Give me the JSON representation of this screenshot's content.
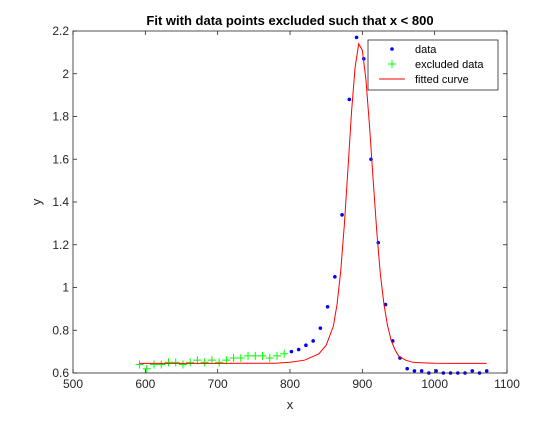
{
  "chart_data": {
    "type": "scatter",
    "title": "Fit with data points excluded such that x < 800",
    "xlabel": "x",
    "ylabel": "y",
    "xlim": [
      500,
      1100
    ],
    "ylim": [
      0.6,
      2.2
    ],
    "xticks": [
      500,
      600,
      700,
      800,
      900,
      1000,
      1100
    ],
    "xtick_labels": [
      "500",
      "600",
      "700",
      "800",
      "900",
      "1000",
      "1100"
    ],
    "yticks": [
      0.6,
      0.8,
      1.0,
      1.2,
      1.4,
      1.6,
      1.8,
      2.0,
      2.2
    ],
    "ytick_labels": [
      "0.6",
      "0.8",
      "1",
      "1.2",
      "1.4",
      "1.6",
      "1.8",
      "2",
      "2.2"
    ],
    "grid": false,
    "legend_position": "top-right",
    "legend": [
      {
        "label": "data",
        "marker": "dot",
        "color": "#0000ff"
      },
      {
        "label": "excluded data",
        "marker": "plus",
        "color": "#00ff00"
      },
      {
        "label": "fitted curve",
        "marker": "line",
        "color": "#ff0000"
      }
    ],
    "series": [
      {
        "name": "data",
        "kind": "points",
        "color": "#0000ff",
        "x": [
          802,
          812,
          822,
          832,
          842,
          852,
          862,
          872,
          882,
          892,
          902,
          912,
          922,
          932,
          942,
          952,
          962,
          972,
          982,
          992,
          1002,
          1012,
          1022,
          1032,
          1042,
          1052,
          1062,
          1072
        ],
        "y": [
          0.7,
          0.71,
          0.73,
          0.75,
          0.81,
          0.91,
          1.05,
          1.34,
          1.88,
          2.17,
          2.07,
          1.6,
          1.21,
          0.92,
          0.75,
          0.67,
          0.62,
          0.61,
          0.61,
          0.6,
          0.61,
          0.6,
          0.6,
          0.6,
          0.6,
          0.61,
          0.6,
          0.61
        ]
      },
      {
        "name": "excluded data",
        "kind": "plus",
        "color": "#00ff00",
        "x": [
          592,
          602,
          612,
          622,
          632,
          642,
          652,
          662,
          672,
          682,
          692,
          702,
          712,
          722,
          732,
          742,
          752,
          762,
          772,
          782,
          792
        ],
        "y": [
          0.64,
          0.62,
          0.64,
          0.64,
          0.65,
          0.65,
          0.64,
          0.65,
          0.66,
          0.65,
          0.66,
          0.65,
          0.66,
          0.67,
          0.67,
          0.68,
          0.68,
          0.68,
          0.67,
          0.68,
          0.69
        ]
      },
      {
        "name": "fitted curve",
        "kind": "line",
        "color": "#ff0000",
        "x": [
          592,
          700,
          780,
          800,
          820,
          840,
          850,
          860,
          865,
          870,
          875,
          880,
          885,
          890,
          895,
          900,
          905,
          910,
          915,
          920,
          925,
          930,
          935,
          940,
          945,
          950,
          960,
          970,
          980,
          1000,
          1030,
          1072
        ],
        "y": [
          0.645,
          0.645,
          0.646,
          0.65,
          0.66,
          0.69,
          0.73,
          0.82,
          0.92,
          1.07,
          1.29,
          1.55,
          1.82,
          2.03,
          2.14,
          2.11,
          1.97,
          1.75,
          1.5,
          1.26,
          1.06,
          0.92,
          0.82,
          0.75,
          0.71,
          0.68,
          0.66,
          0.65,
          0.648,
          0.646,
          0.645,
          0.645
        ]
      }
    ]
  }
}
